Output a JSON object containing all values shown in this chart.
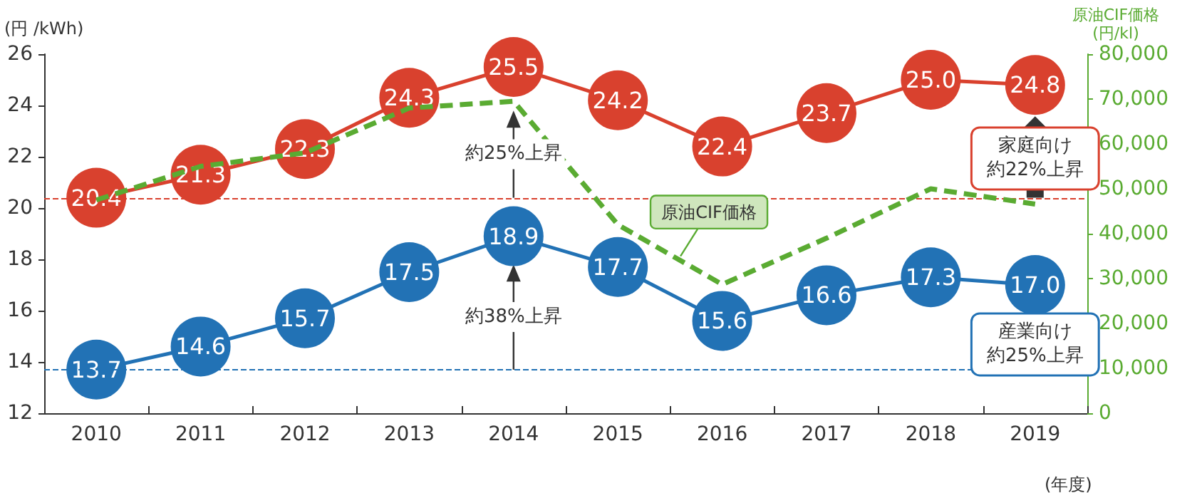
{
  "chart_data": {
    "type": "line",
    "categories": [
      "2010",
      "2011",
      "2012",
      "2013",
      "2014",
      "2015",
      "2016",
      "2017",
      "2018",
      "2019"
    ],
    "series": [
      {
        "color": "#d9412e",
        "values": [
          20.4,
          21.3,
          22.3,
          24.3,
          25.5,
          24.2,
          22.4,
          23.7,
          25.0,
          24.8
        ],
        "value_labels": [
          "20.4",
          "21.3",
          "22.3",
          "24.3",
          "25.5",
          "24.2",
          "22.4",
          "23.7",
          "25.0",
          "24.8"
        ]
      },
      {
        "color": "#2272b5",
        "values": [
          13.7,
          14.6,
          15.7,
          17.5,
          18.9,
          17.7,
          15.6,
          16.6,
          17.3,
          17.0
        ],
        "value_labels": [
          "13.7",
          "14.6",
          "15.7",
          "17.5",
          "18.9",
          "17.7",
          "15.6",
          "16.6",
          "17.3",
          "17.0"
        ]
      },
      {
        "name": "原油CIF価格",
        "color": "#5aab32",
        "axis": "y2",
        "type": "line",
        "line_style": "dashed",
        "marker": "none",
        "values": [
          47500,
          55000,
          58000,
          68000,
          69500,
          42000,
          28700,
          39000,
          50000,
          46600
        ]
      }
    ],
    "ylabel": "(円 /kWh)",
    "y2label": "原油CIF価格\n(円/kl)",
    "xlabel": "(年度)",
    "ylim": [
      12,
      26
    ],
    "yticks": [
      12,
      14,
      16,
      18,
      20,
      22,
      24,
      26
    ],
    "y2lim": [
      0,
      80000
    ],
    "y2ticks": [
      0,
      {
        "value": 10000,
        "label": "10,000"
      },
      {
        "value": 20000,
        "label": "20,000"
      },
      {
        "value": 30000,
        "label": "30,000"
      },
      {
        "value": 40000,
        "label": "40,000"
      },
      {
        "value": 50000,
        "label": "50,000"
      },
      {
        "value": 60000,
        "label": "60,000"
      },
      {
        "value": 70000,
        "label": "70,000"
      },
      {
        "value": 80000,
        "label": "80,000"
      }
    ],
    "ref_lines": [
      {
        "axis": "y",
        "value": 20.4,
        "color": "#d9412e",
        "line_style": "dashed"
      },
      {
        "axis": "y",
        "value": 13.7,
        "color": "#2272b5",
        "line_style": "dashed"
      }
    ],
    "annotations": [
      {
        "text": "約25%上昇",
        "x": "2014",
        "y": 23.8
      },
      {
        "text": "約38%上昇",
        "x": "2014",
        "y": 17.8
      },
      "家庭向け約22%上昇",
      "産業向け約25%上昇"
    ],
    "marker": "circle",
    "grid": false,
    "legend": false
  }
}
